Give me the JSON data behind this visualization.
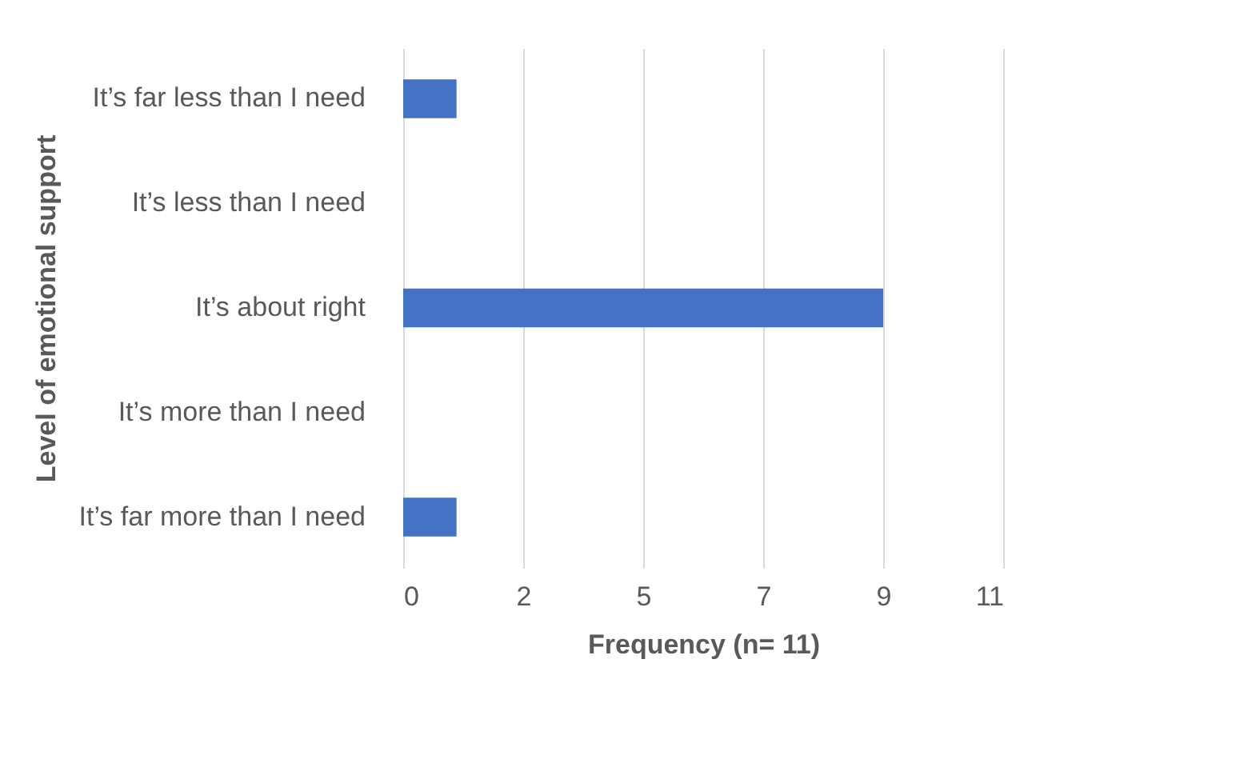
{
  "chart_data": {
    "type": "bar",
    "orientation": "horizontal",
    "xlabel": "Frequency (n= 11)",
    "ylabel": "Level of emotional support",
    "categories": [
      "It’s far less than I need",
      "It’s less than I need",
      "It’s about right",
      "It’s more than I need",
      "It’s far more than I need"
    ],
    "values": [
      1,
      0,
      9,
      0,
      1
    ],
    "color": "#4472c4",
    "xlim": [
      0,
      11.25
    ],
    "xticks": [
      0,
      {
        "value": 2.25,
        "label": "2"
      },
      {
        "value": 4.5,
        "label": "5"
      },
      {
        "value": 6.75,
        "label": "7"
      },
      9,
      {
        "value": 11.25,
        "label": "11"
      }
    ],
    "grid": "x"
  }
}
